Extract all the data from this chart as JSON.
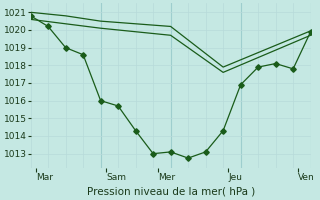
{
  "title": "Pression niveau de la mer( hPa )",
  "bg_color": "#c5e8e3",
  "grid_color_major": "#9ecece",
  "grid_color_minor": "#b8dada",
  "line_color": "#1a5c1a",
  "ylim": [
    1012.2,
    1021.5
  ],
  "yticks": [
    1013,
    1014,
    1015,
    1016,
    1017,
    1018,
    1019,
    1020,
    1021
  ],
  "xlim": [
    0,
    16
  ],
  "day_labels": [
    "Mar",
    "Sam",
    "Mer",
    "Jeu",
    "Ven"
  ],
  "day_positions": [
    0.3,
    4.3,
    7.3,
    11.3,
    15.3
  ],
  "vline_major": [
    4,
    8,
    12,
    16
  ],
  "vline_minor": [
    0,
    1,
    2,
    3,
    4,
    5,
    6,
    7,
    8,
    9,
    10,
    11,
    12,
    13,
    14,
    15,
    16
  ],
  "line_detail_x": [
    0,
    1,
    2,
    3,
    4,
    5,
    6,
    7,
    8,
    9,
    10,
    11,
    12,
    13,
    14,
    15,
    16
  ],
  "line_detail_y": [
    1020.8,
    1020.2,
    1019.0,
    1018.6,
    1016.0,
    1015.7,
    1014.3,
    1013.0,
    1013.1,
    1012.75,
    1013.1,
    1014.3,
    1016.9,
    1017.9,
    1018.1,
    1017.8,
    1019.9
  ],
  "line_upper_x": [
    0,
    2,
    4,
    8,
    11,
    16
  ],
  "line_upper_y": [
    1021.0,
    1020.8,
    1020.5,
    1020.2,
    1017.9,
    1019.95
  ],
  "line_lower_x": [
    0,
    2,
    4,
    8,
    11,
    16
  ],
  "line_lower_y": [
    1020.6,
    1020.35,
    1020.1,
    1019.7,
    1017.6,
    1019.7
  ],
  "xlabel_fontsize": 7.5,
  "tick_fontsize": 6.5
}
